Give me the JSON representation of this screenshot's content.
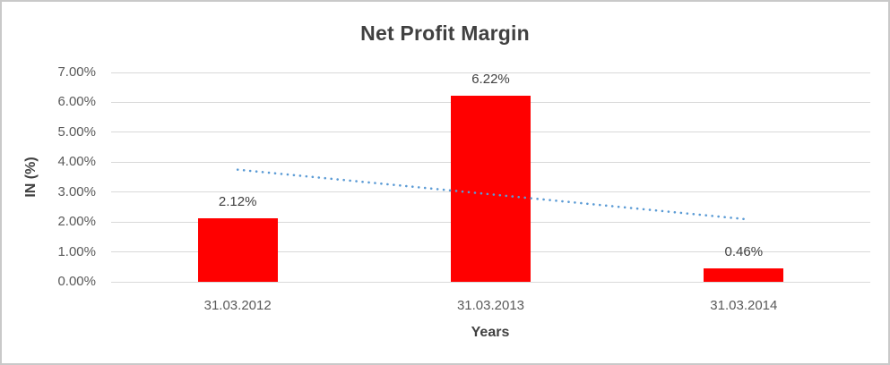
{
  "chart_data": {
    "type": "bar",
    "title": "Net Profit Margin",
    "ylabel": "IN (%)",
    "xlabel": "Years",
    "categories": [
      "31.03.2012",
      "31.03.2013",
      "31.03.2014"
    ],
    "values": [
      2.12,
      6.22,
      0.46
    ],
    "value_labels": [
      "2.12%",
      "6.22%",
      "0.46%"
    ],
    "y_ticks": [
      "7.00%",
      "6.00%",
      "5.00%",
      "4.00%",
      "3.00%",
      "2.00%",
      "1.00%",
      "0.00%"
    ],
    "ylim": [
      0,
      7
    ],
    "y_tick_step": 1,
    "grid": true,
    "legend": "none",
    "bar_color": "#ff0000",
    "gridline_color": "#d9d9d9",
    "trendline": {
      "style": "dotted",
      "color": "#5b9bd5",
      "start_pct": 3.75,
      "end_pct": 2.1
    }
  }
}
